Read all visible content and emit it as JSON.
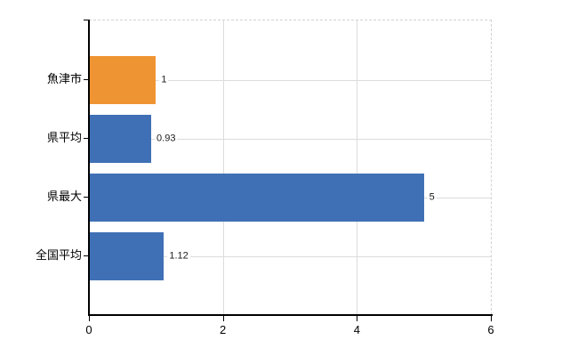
{
  "chart_data": {
    "type": "bar",
    "orientation": "horizontal",
    "title": "",
    "categories": [
      "魚津市",
      "県平均",
      "県最大",
      "全国平均"
    ],
    "values": [
      1,
      0.93,
      5,
      1.12
    ],
    "value_labels": [
      "1",
      "0.93",
      "5",
      "1.12"
    ],
    "bar_colors": [
      "#ef9433",
      "#3f70b5",
      "#3f70b5",
      "#3f70b5"
    ],
    "xlim": [
      0,
      6
    ],
    "x_tick_values": [
      0,
      2,
      4,
      6
    ],
    "x_tick_labels": [
      "0",
      "2",
      "4",
      "6"
    ],
    "grid": true,
    "legend": false,
    "colors": {
      "highlight_bar": "#ef9433",
      "default_bar": "#3f70b5",
      "gridline": "#dcdcdc",
      "axis": "#000000",
      "background": "#ffffff"
    }
  }
}
